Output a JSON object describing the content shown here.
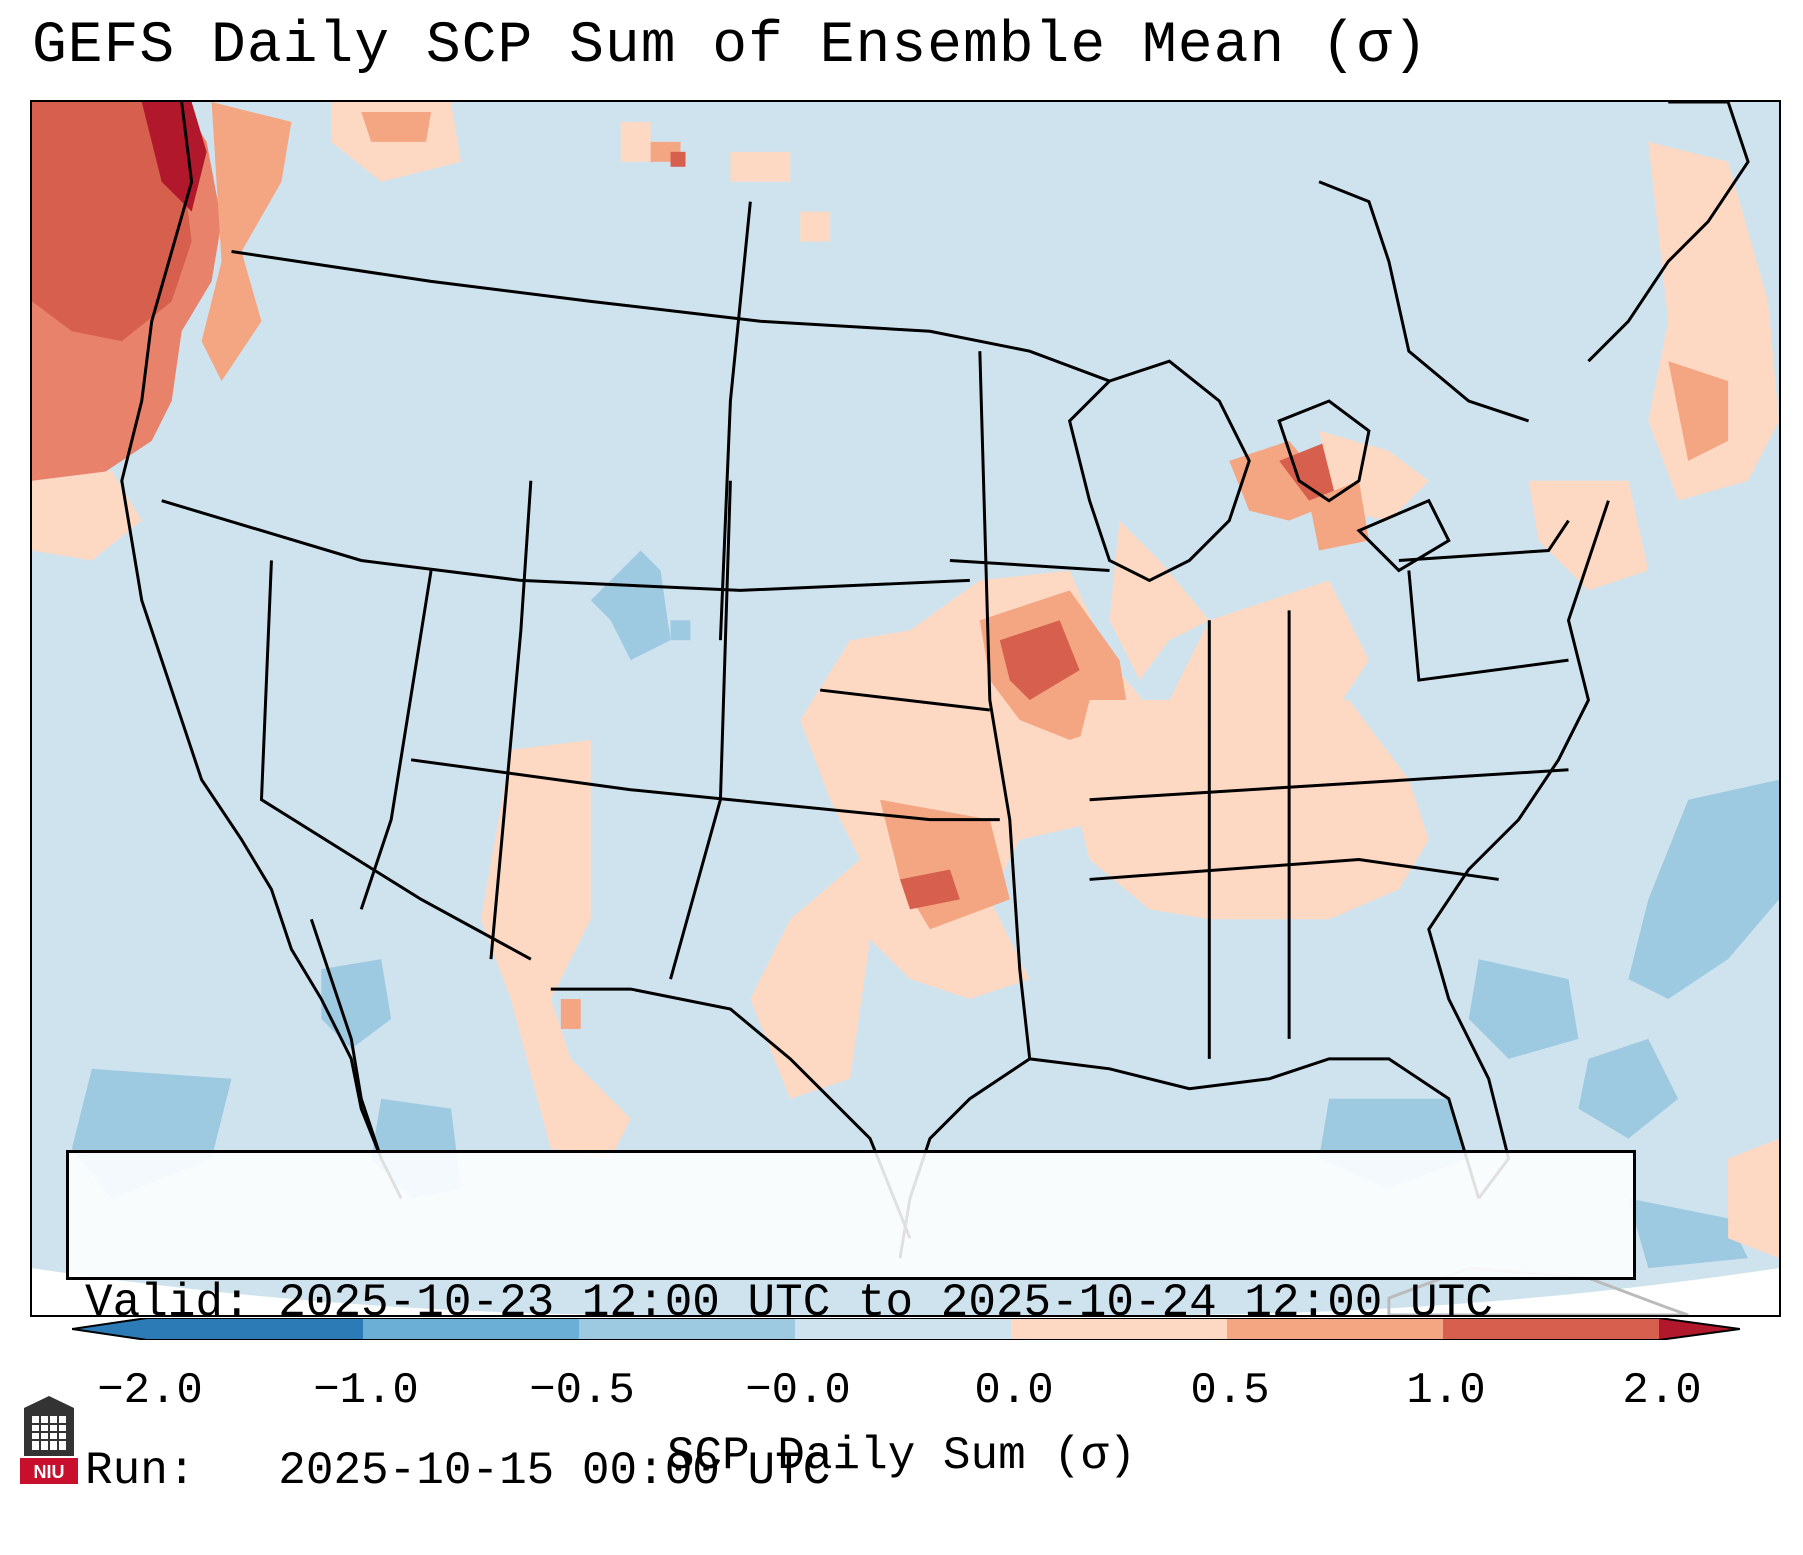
{
  "title": "GEFS Daily SCP Sum of Ensemble Mean (σ)",
  "info": {
    "valid_line": "Valid: 2025-10-23 12:00 UTC to 2025-10-24 12:00 UTC",
    "run_line": "Run:   2025-10-15 00:00 UTC"
  },
  "colorbar": {
    "label": "SCP Daily Sum (σ)",
    "ticks": [
      "−2.0",
      "−1.0",
      "−0.5",
      "−0.0",
      "0.0",
      "0.5",
      "1.0",
      "2.0"
    ],
    "colors": [
      "#2c7bb6",
      "#6baed6",
      "#9ecae1",
      "#cfe3ef",
      "#fdd9c4",
      "#f4a582",
      "#d6604d",
      "#b2182b"
    ]
  },
  "logo": {
    "text": "NIU"
  },
  "map": {
    "background_color": "#cfe3ef",
    "land_line_color": "#000000"
  }
}
